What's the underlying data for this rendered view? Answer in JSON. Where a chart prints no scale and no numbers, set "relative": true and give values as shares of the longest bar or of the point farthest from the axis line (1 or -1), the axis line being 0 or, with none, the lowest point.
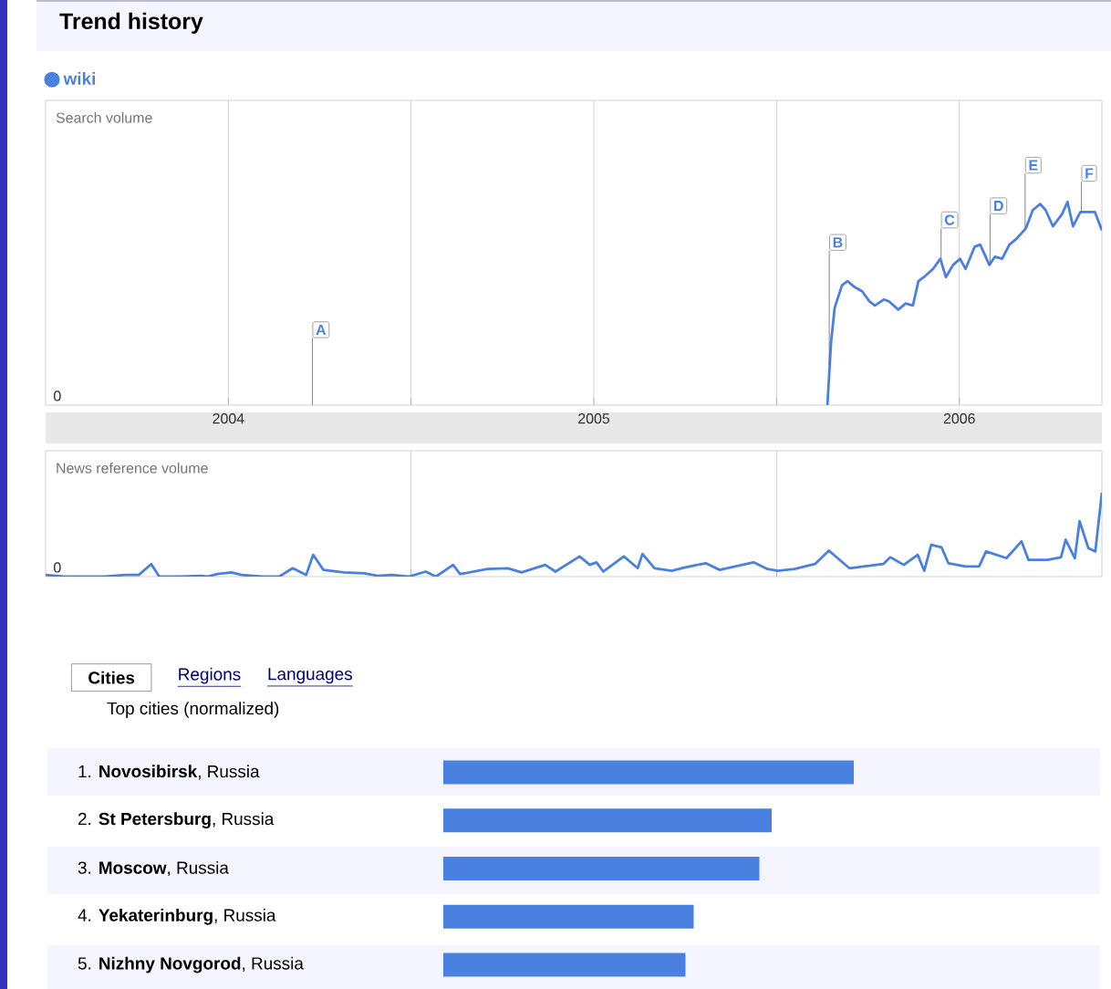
{
  "chart_data": [
    {
      "type": "line",
      "title": "Trend history",
      "ylabel": "Search volume",
      "relative": true,
      "legend": "top left",
      "grid": "x",
      "xlim": [
        2004,
        2006.89
      ],
      "xticks": [
        {
          "value": 2004.5,
          "label": "2004"
        },
        {
          "value": 2005,
          "label": null
        },
        {
          "value": 2005.5,
          "label": "2005"
        },
        {
          "value": 2006,
          "label": null
        },
        {
          "value": 2006.5,
          "label": "2006"
        }
      ],
      "series": [
        {
          "name": "wiki",
          "color": "#4a80e0",
          "x": [
            2006.139,
            2006.149,
            2006.159,
            2006.179,
            2006.194,
            2006.214,
            2006.234,
            2006.254,
            2006.269,
            2006.294,
            2006.308,
            2006.333,
            2006.353,
            2006.373,
            2006.388,
            2006.403,
            2006.428,
            2006.448,
            2006.463,
            2006.483,
            2006.502,
            2006.517,
            2006.542,
            2006.557,
            2006.582,
            2006.597,
            2006.617,
            2006.637,
            2006.657,
            2006.682,
            2006.701,
            2006.721,
            2006.736,
            2006.756,
            2006.781,
            2006.796,
            2006.811,
            2006.831,
            2006.851,
            2006.871,
            2006.89
          ],
          "values": [
            0,
            0.31,
            0.48,
            0.59,
            0.61,
            0.58,
            0.56,
            0.51,
            0.49,
            0.52,
            0.51,
            0.47,
            0.5,
            0.49,
            0.61,
            0.63,
            0.67,
            0.72,
            0.63,
            0.69,
            0.72,
            0.67,
            0.78,
            0.79,
            0.69,
            0.73,
            0.72,
            0.79,
            0.82,
            0.87,
            0.96,
            0.99,
            0.96,
            0.88,
            0.94,
            1.0,
            0.88,
            0.95,
            0.95,
            0.95,
            0.86
          ]
        }
      ],
      "ref_lines": [
        {
          "axis": "x",
          "value": 2004.73,
          "label": "A"
        }
      ],
      "annotations": [
        "0",
        {
          "text": "B",
          "x": 2006.144,
          "y": 0.2
        },
        {
          "text": "C",
          "x": 2006.45,
          "y": 0.72
        },
        {
          "text": "D",
          "x": 2006.584,
          "y": 0.69
        },
        {
          "text": "E",
          "x": 2006.68,
          "y": 0.87
        },
        {
          "text": "F",
          "x": 2006.834,
          "y": 0.95
        }
      ]
    },
    {
      "type": "line",
      "ylabel": "News reference volume",
      "relative": true,
      "grid": "x",
      "tick_labels": false,
      "xlim": [
        2004,
        2006.89
      ],
      "xticks": [
        2005,
        2006
      ],
      "series": [
        {
          "color": "#4a80e0",
          "x": [
            2004.0,
            2004.05,
            2004.087,
            2004.162,
            2004.218,
            2004.255,
            2004.289,
            2004.311,
            2004.368,
            2004.424,
            2004.442,
            2004.47,
            2004.508,
            2004.536,
            2004.592,
            2004.639,
            2004.676,
            2004.713,
            2004.732,
            2004.76,
            2004.816,
            2004.872,
            2004.909,
            2004.947,
            2004.993,
            2005.04,
            2005.068,
            2005.115,
            2005.134,
            2005.209,
            2005.265,
            2005.302,
            2005.367,
            2005.395,
            2005.461,
            2005.489,
            2005.507,
            2005.526,
            2005.582,
            2005.62,
            2005.633,
            2005.666,
            2005.713,
            2005.75,
            2005.806,
            2005.844,
            2005.937,
            2005.975,
            2006.003,
            2006.049,
            2006.105,
            2006.143,
            2006.199,
            2006.292,
            2006.311,
            2006.348,
            2006.386,
            2006.404,
            2006.423,
            2006.451,
            2006.47,
            2006.517,
            2006.554,
            2006.573,
            2006.629,
            2006.67,
            2006.689,
            2006.741,
            2006.778,
            2006.791,
            2006.816,
            2006.829,
            2006.853,
            2006.872,
            2006.89
          ],
          "values": [
            0.02,
            0,
            0,
            0,
            0.02,
            0.02,
            0.15,
            0,
            0,
            0.01,
            0,
            0.03,
            0.05,
            0.02,
            0,
            0,
            0.1,
            0.02,
            0.26,
            0.08,
            0.05,
            0.04,
            0.01,
            0.02,
            0,
            0.06,
            0,
            0.14,
            0.03,
            0.09,
            0.1,
            0.05,
            0.14,
            0.06,
            0.24,
            0.14,
            0.17,
            0.06,
            0.24,
            0.1,
            0.27,
            0.1,
            0.07,
            0.11,
            0.16,
            0.08,
            0.17,
            0.09,
            0.07,
            0.09,
            0.15,
            0.31,
            0.1,
            0.15,
            0.23,
            0.14,
            0.26,
            0.07,
            0.38,
            0.35,
            0.16,
            0.12,
            0.12,
            0.3,
            0.22,
            0.42,
            0.2,
            0.2,
            0.23,
            0.44,
            0.22,
            0.66,
            0.34,
            0.3,
            1.0
          ]
        }
      ],
      "annotations": [
        "0"
      ]
    },
    {
      "type": "bar",
      "orientation": "horizontal",
      "relative": true,
      "title": "Top cities (normalized)",
      "color": "#4a80e0",
      "categories": [
        "1.  **Novosibirsk**, Russia",
        "2.  **St Petersburg**, Russia",
        "3.  **Moscow**, Russia",
        "4.  **Yekaterinburg**, Russia",
        "5.  **Nizhny Novgorod**, Russia"
      ],
      "values": [
        1.0,
        0.8,
        0.77,
        0.61,
        0.59
      ],
      "annotations": [
        "Cities",
        "Regions",
        "Languages"
      ]
    }
  ]
}
